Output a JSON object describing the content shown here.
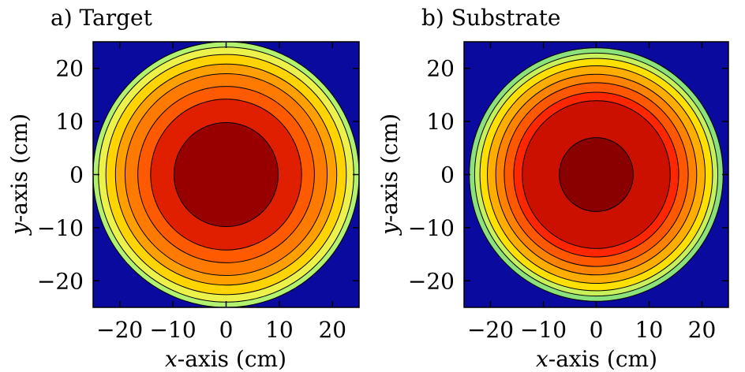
{
  "chart_data": [
    {
      "type": "contour",
      "panel": "a",
      "title": "a) Target",
      "xlabel_var": "x",
      "xlabel_rest": "-axis (cm)",
      "ylabel_var": "y",
      "ylabel_rest": "-axis (cm)",
      "xlim": [
        -25,
        25
      ],
      "ylim": [
        -25,
        25
      ],
      "xticks": [
        -20,
        -10,
        0,
        10,
        20
      ],
      "yticks": [
        -20,
        -10,
        0,
        10,
        20
      ],
      "xtick_labels": [
        "−20",
        "−10",
        "0",
        "10",
        "20"
      ],
      "ytick_labels": [
        "−20",
        "−10",
        "0",
        "10",
        "20"
      ],
      "background_color": "#0a0a9e",
      "levels": [
        {
          "radius": 25.0,
          "color": "#b2f26e"
        },
        {
          "radius": 24.0,
          "color": "#ecf24a"
        },
        {
          "radius": 22.6,
          "color": "#ffd400"
        },
        {
          "radius": 20.8,
          "color": "#ffa000"
        },
        {
          "radius": 19.0,
          "color": "#ff7a00"
        },
        {
          "radius": 16.6,
          "color": "#ff5a00"
        },
        {
          "radius": 14.2,
          "color": "#e01e00"
        },
        {
          "radius": 9.8,
          "color": "#980000"
        }
      ]
    },
    {
      "type": "contour",
      "panel": "b",
      "title": "b) Substrate",
      "xlabel_var": "x",
      "xlabel_rest": "-axis (cm)",
      "ylabel_var": "y",
      "ylabel_rest": "-axis (cm)",
      "xlim": [
        -25,
        25
      ],
      "ylim": [
        -25,
        25
      ],
      "xticks": [
        -20,
        -10,
        0,
        10,
        20
      ],
      "yticks": [
        -20,
        -10,
        0,
        10,
        20
      ],
      "xtick_labels": [
        "−20",
        "−10",
        "0",
        "10",
        "20"
      ],
      "ytick_labels": [
        "−20",
        "−10",
        "0",
        "10",
        "20"
      ],
      "background_color": "#0a0a9e",
      "levels": [
        {
          "radius": 24.0,
          "color": "#8ce27a"
        },
        {
          "radius": 23.0,
          "color": "#c8f05a"
        },
        {
          "radius": 22.0,
          "color": "#ffe000"
        },
        {
          "radius": 20.6,
          "color": "#ffae00"
        },
        {
          "radius": 19.0,
          "color": "#ff8200"
        },
        {
          "radius": 17.4,
          "color": "#ff5800"
        },
        {
          "radius": 15.6,
          "color": "#ff2600"
        },
        {
          "radius": 14.0,
          "color": "#cc1000"
        },
        {
          "radius": 7.0,
          "color": "#8a0000"
        }
      ]
    }
  ]
}
